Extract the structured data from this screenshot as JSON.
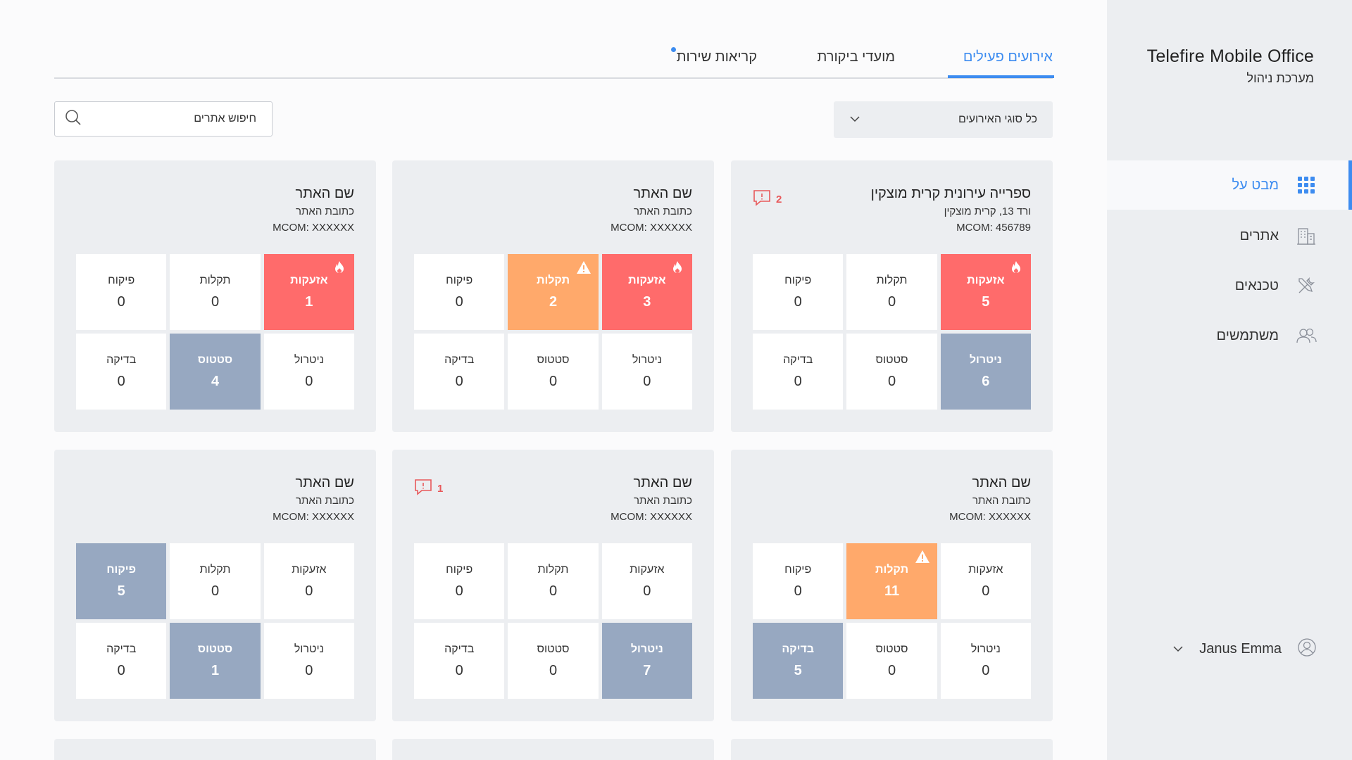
{
  "sidebar": {
    "brand_title": "Telefire Mobile Office",
    "brand_subtitle": "מערכת ניהול",
    "nav": [
      {
        "label": "מבט על",
        "icon": "grid-icon",
        "active": true
      },
      {
        "label": "אתרים",
        "icon": "building-icon",
        "active": false
      },
      {
        "label": "טכנאים",
        "icon": "tools-icon",
        "active": false
      },
      {
        "label": "משתמשים",
        "icon": "users-icon",
        "active": false
      }
    ],
    "user": {
      "name": "Janus Emma",
      "icon": "user-circle-icon"
    }
  },
  "tabs": [
    {
      "label": "אירועים פעילים",
      "active": true
    },
    {
      "label": "מועדי ביקורת",
      "active": false
    },
    {
      "label": "קריאות שירות",
      "active": false,
      "notification_dot": true
    }
  ],
  "filters": {
    "event_type": {
      "value": "כל סוגי האירועים",
      "icon": "chevron-down-icon"
    },
    "search": {
      "placeholder": "חיפוש אתרים",
      "icon": "search-icon"
    }
  },
  "colors": {
    "accent": "#3d8cf0",
    "alarm": "#ff6b6b",
    "fault": "#ffa96b",
    "status": "#97a8c1",
    "message": "#e8585a"
  },
  "sites": [
    {
      "title": "ספרייה עירונית קרית מוצקין",
      "address": "ורד 13, קרית מוצקין",
      "mcom": "MCOM: 456789",
      "messages": "2",
      "cells": [
        {
          "label": "אזעקות",
          "value": "5",
          "state": "red",
          "icon": "fire-icon"
        },
        {
          "label": "תקלות",
          "value": "0",
          "state": "",
          "icon": ""
        },
        {
          "label": "פיקוח",
          "value": "0",
          "state": "",
          "icon": ""
        },
        {
          "label": "ניטרול",
          "value": "6",
          "state": "slate",
          "icon": ""
        },
        {
          "label": "סטטוס",
          "value": "0",
          "state": "",
          "icon": ""
        },
        {
          "label": "בדיקה",
          "value": "0",
          "state": "",
          "icon": ""
        }
      ]
    },
    {
      "title": "שם האתר",
      "address": "כתובת האתר",
      "mcom": "MCOM: XXXXXX",
      "messages": "",
      "cells": [
        {
          "label": "אזעקות",
          "value": "3",
          "state": "red",
          "icon": "fire-icon"
        },
        {
          "label": "תקלות",
          "value": "2",
          "state": "orange",
          "icon": "warning-icon"
        },
        {
          "label": "פיקוח",
          "value": "0",
          "state": "",
          "icon": ""
        },
        {
          "label": "ניטרול",
          "value": "0",
          "state": "",
          "icon": ""
        },
        {
          "label": "סטטוס",
          "value": "0",
          "state": "",
          "icon": ""
        },
        {
          "label": "בדיקה",
          "value": "0",
          "state": "",
          "icon": ""
        }
      ]
    },
    {
      "title": "שם האתר",
      "address": "כתובת האתר",
      "mcom": "MCOM: XXXXXX",
      "messages": "",
      "cells": [
        {
          "label": "אזעקות",
          "value": "1",
          "state": "red",
          "icon": "fire-icon"
        },
        {
          "label": "תקלות",
          "value": "0",
          "state": "",
          "icon": ""
        },
        {
          "label": "פיקוח",
          "value": "0",
          "state": "",
          "icon": ""
        },
        {
          "label": "ניטרול",
          "value": "0",
          "state": "",
          "icon": ""
        },
        {
          "label": "סטטוס",
          "value": "4",
          "state": "slate",
          "icon": ""
        },
        {
          "label": "בדיקה",
          "value": "0",
          "state": "",
          "icon": ""
        }
      ]
    },
    {
      "title": "שם האתר",
      "address": "כתובת האתר",
      "mcom": "MCOM: XXXXXX",
      "messages": "",
      "cells": [
        {
          "label": "אזעקות",
          "value": "0",
          "state": "",
          "icon": ""
        },
        {
          "label": "תקלות",
          "value": "11",
          "state": "orange",
          "icon": "warning-icon"
        },
        {
          "label": "פיקוח",
          "value": "0",
          "state": "",
          "icon": ""
        },
        {
          "label": "ניטרול",
          "value": "0",
          "state": "",
          "icon": ""
        },
        {
          "label": "סטטוס",
          "value": "0",
          "state": "",
          "icon": ""
        },
        {
          "label": "בדיקה",
          "value": "5",
          "state": "slate",
          "icon": ""
        }
      ]
    },
    {
      "title": "שם האתר",
      "address": "כתובת האתר",
      "mcom": "MCOM: XXXXXX",
      "messages": "1",
      "cells": [
        {
          "label": "אזעקות",
          "value": "0",
          "state": "",
          "icon": ""
        },
        {
          "label": "תקלות",
          "value": "0",
          "state": "",
          "icon": ""
        },
        {
          "label": "פיקוח",
          "value": "0",
          "state": "",
          "icon": ""
        },
        {
          "label": "ניטרול",
          "value": "7",
          "state": "slate",
          "icon": ""
        },
        {
          "label": "סטטוס",
          "value": "0",
          "state": "",
          "icon": ""
        },
        {
          "label": "בדיקה",
          "value": "0",
          "state": "",
          "icon": ""
        }
      ]
    },
    {
      "title": "שם האתר",
      "address": "כתובת האתר",
      "mcom": "MCOM: XXXXXX",
      "messages": "",
      "cells": [
        {
          "label": "אזעקות",
          "value": "0",
          "state": "",
          "icon": ""
        },
        {
          "label": "תקלות",
          "value": "0",
          "state": "",
          "icon": ""
        },
        {
          "label": "פיקוח",
          "value": "5",
          "state": "slate",
          "icon": ""
        },
        {
          "label": "ניטרול",
          "value": "0",
          "state": "",
          "icon": ""
        },
        {
          "label": "סטטוס",
          "value": "1",
          "state": "slate",
          "icon": ""
        },
        {
          "label": "בדיקה",
          "value": "0",
          "state": "",
          "icon": ""
        }
      ]
    }
  ]
}
